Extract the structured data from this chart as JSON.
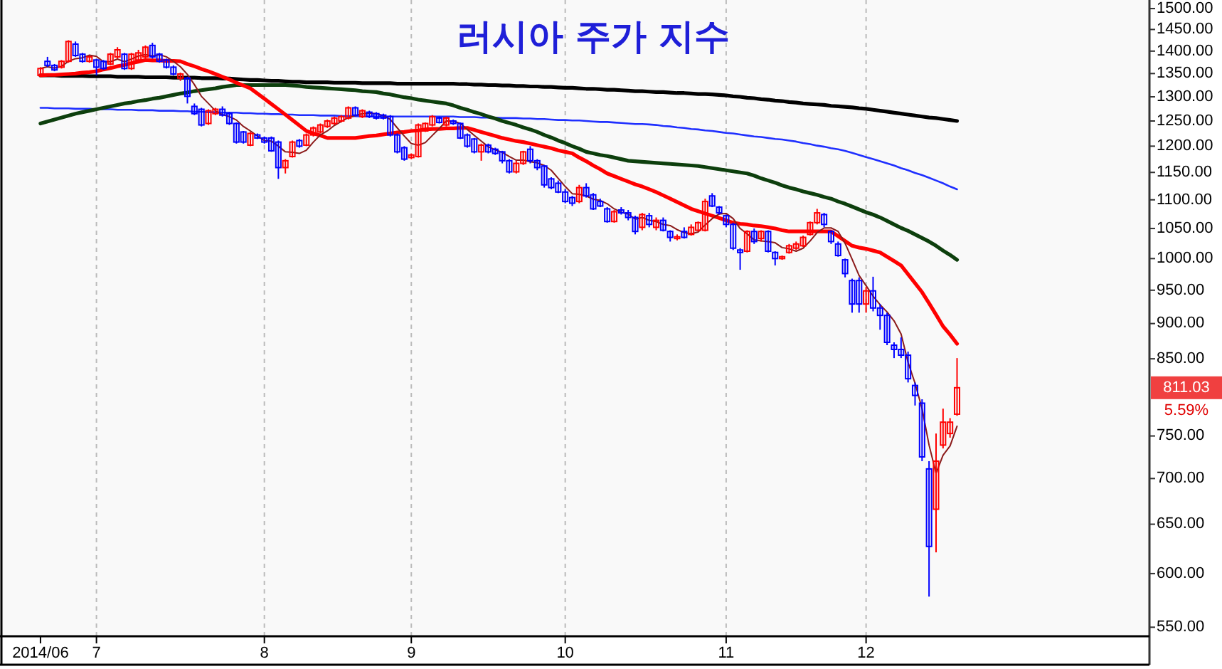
{
  "chart_data": {
    "type": "candlestick",
    "title": "러시아 주가 지수",
    "categories": [
      "2014/06",
      null,
      null,
      null,
      null,
      null,
      null,
      null,
      "7",
      null,
      null,
      null,
      null,
      null,
      null,
      null,
      null,
      null,
      null,
      null,
      null,
      null,
      null,
      null,
      null,
      null,
      null,
      null,
      null,
      null,
      null,
      null,
      "8",
      null,
      null,
      null,
      null,
      null,
      null,
      null,
      null,
      null,
      null,
      null,
      null,
      null,
      null,
      null,
      null,
      null,
      null,
      null,
      null,
      "9",
      null,
      null,
      null,
      null,
      null,
      null,
      null,
      null,
      null,
      null,
      null,
      null,
      null,
      null,
      null,
      null,
      null,
      null,
      null,
      null,
      null,
      "10",
      null,
      null,
      null,
      null,
      null,
      null,
      null,
      null,
      null,
      null,
      null,
      null,
      null,
      null,
      null,
      null,
      null,
      null,
      null,
      null,
      null,
      null,
      "11",
      null,
      null,
      null,
      null,
      null,
      null,
      null,
      null,
      null,
      null,
      null,
      null,
      null,
      null,
      null,
      null,
      null,
      null,
      null,
      "12",
      null,
      null,
      null,
      null,
      null,
      null,
      null,
      null,
      null,
      null,
      null,
      null,
      null
    ],
    "ohlc": [
      [
        1346,
        1364,
        1343,
        1361
      ],
      [
        1377,
        1387,
        1364,
        1368
      ],
      [
        1368,
        1371,
        1355,
        1358
      ],
      [
        1364,
        1380,
        1361,
        1377
      ],
      [
        1377,
        1425,
        1374,
        1422
      ],
      [
        1416,
        1422,
        1387,
        1390
      ],
      [
        1393,
        1396,
        1374,
        1377
      ],
      [
        1377,
        1390,
        1374,
        1387
      ],
      [
        1380,
        1383,
        1346,
        1364
      ],
      [
        1377,
        1380,
        1358,
        1361
      ],
      [
        1371,
        1396,
        1368,
        1393
      ],
      [
        1387,
        1409,
        1383,
        1403
      ],
      [
        1393,
        1396,
        1358,
        1361
      ],
      [
        1361,
        1396,
        1358,
        1393
      ],
      [
        1380,
        1403,
        1377,
        1396
      ],
      [
        1387,
        1413,
        1383,
        1409
      ],
      [
        1413,
        1419,
        1383,
        1387
      ],
      [
        1393,
        1396,
        1374,
        1377
      ],
      [
        1380,
        1383,
        1361,
        1364
      ],
      [
        1364,
        1368,
        1346,
        1349
      ],
      [
        1340,
        1352,
        1334,
        1349
      ],
      [
        1340,
        1343,
        1286,
        1301
      ],
      [
        1280,
        1286,
        1262,
        1265
      ],
      [
        1274,
        1277,
        1239,
        1242
      ],
      [
        1245,
        1274,
        1242,
        1271
      ],
      [
        1265,
        1277,
        1262,
        1274
      ],
      [
        1274,
        1280,
        1259,
        1262
      ],
      [
        1265,
        1268,
        1242,
        1245
      ],
      [
        1245,
        1247,
        1205,
        1208
      ],
      [
        1228,
        1230,
        1205,
        1208
      ],
      [
        1202,
        1228,
        1200,
        1225
      ],
      [
        1222,
        1225,
        1214,
        1216
      ],
      [
        1216,
        1219,
        1205,
        1208
      ],
      [
        1216,
        1219,
        1189,
        1191
      ],
      [
        1208,
        1211,
        1138,
        1159
      ],
      [
        1159,
        1175,
        1148,
        1172
      ],
      [
        1180,
        1211,
        1178,
        1208
      ],
      [
        1211,
        1214,
        1197,
        1200
      ],
      [
        1202,
        1225,
        1200,
        1222
      ],
      [
        1222,
        1239,
        1219,
        1236
      ],
      [
        1228,
        1245,
        1225,
        1242
      ],
      [
        1239,
        1253,
        1236,
        1250
      ],
      [
        1245,
        1259,
        1242,
        1256
      ],
      [
        1250,
        1262,
        1247,
        1259
      ],
      [
        1256,
        1280,
        1253,
        1277
      ],
      [
        1277,
        1280,
        1259,
        1262
      ],
      [
        1259,
        1274,
        1256,
        1271
      ],
      [
        1268,
        1271,
        1256,
        1259
      ],
      [
        1265,
        1268,
        1253,
        1256
      ],
      [
        1262,
        1265,
        1253,
        1256
      ],
      [
        1259,
        1262,
        1219,
        1222
      ],
      [
        1222,
        1225,
        1186,
        1189
      ],
      [
        1197,
        1200,
        1172,
        1175
      ],
      [
        1178,
        1186,
        1175,
        1183
      ],
      [
        1180,
        1245,
        1178,
        1242
      ],
      [
        1230,
        1247,
        1228,
        1245
      ],
      [
        1242,
        1262,
        1239,
        1259
      ],
      [
        1256,
        1259,
        1245,
        1247
      ],
      [
        1242,
        1259,
        1239,
        1256
      ],
      [
        1250,
        1253,
        1242,
        1245
      ],
      [
        1245,
        1247,
        1214,
        1216
      ],
      [
        1222,
        1225,
        1197,
        1200
      ],
      [
        1214,
        1216,
        1186,
        1189
      ],
      [
        1189,
        1205,
        1172,
        1202
      ],
      [
        1202,
        1205,
        1186,
        1189
      ],
      [
        1194,
        1197,
        1183,
        1186
      ],
      [
        1189,
        1191,
        1167,
        1172
      ],
      [
        1172,
        1175,
        1148,
        1151
      ],
      [
        1151,
        1172,
        1148,
        1167
      ],
      [
        1167,
        1191,
        1164,
        1189
      ],
      [
        1194,
        1200,
        1167,
        1172
      ],
      [
        1172,
        1175,
        1154,
        1159
      ],
      [
        1162,
        1164,
        1122,
        1127
      ],
      [
        1138,
        1141,
        1119,
        1122
      ],
      [
        1130,
        1135,
        1112,
        1114
      ],
      [
        1114,
        1119,
        1094,
        1097
      ],
      [
        1104,
        1107,
        1089,
        1094
      ],
      [
        1097,
        1127,
        1094,
        1122
      ],
      [
        1122,
        1130,
        1104,
        1107
      ],
      [
        1109,
        1112,
        1082,
        1084
      ],
      [
        1097,
        1102,
        1087,
        1089
      ],
      [
        1084,
        1087,
        1060,
        1062
      ],
      [
        1062,
        1082,
        1060,
        1079
      ],
      [
        1082,
        1087,
        1074,
        1077
      ],
      [
        1077,
        1082,
        1064,
        1069
      ],
      [
        1069,
        1072,
        1040,
        1045
      ],
      [
        1052,
        1077,
        1047,
        1074
      ],
      [
        1072,
        1077,
        1052,
        1057
      ],
      [
        1052,
        1069,
        1047,
        1064
      ],
      [
        1064,
        1069,
        1045,
        1047
      ],
      [
        1045,
        1047,
        1028,
        1035
      ],
      [
        1033,
        1040,
        1030,
        1036
      ],
      [
        1045,
        1052,
        1033,
        1035
      ],
      [
        1040,
        1057,
        1038,
        1052
      ],
      [
        1047,
        1062,
        1045,
        1060
      ],
      [
        1047,
        1102,
        1045,
        1097
      ],
      [
        1107,
        1112,
        1087,
        1089
      ],
      [
        1087,
        1089,
        1074,
        1077
      ],
      [
        1072,
        1074,
        1052,
        1057
      ],
      [
        1057,
        1060,
        1014,
        1017
      ],
      [
        1014,
        1017,
        982,
        1010
      ],
      [
        1012,
        1047,
        1010,
        1045
      ],
      [
        1045,
        1050,
        1024,
        1028
      ],
      [
        1033,
        1047,
        1028,
        1045
      ],
      [
        1045,
        1047,
        1010,
        1012
      ],
      [
        1010,
        1012,
        989,
        1000
      ],
      [
        1000,
        1005,
        998,
        1003
      ],
      [
        1010,
        1024,
        1008,
        1021
      ],
      [
        1017,
        1028,
        1014,
        1024
      ],
      [
        1021,
        1038,
        1019,
        1035
      ],
      [
        1040,
        1062,
        1038,
        1060
      ],
      [
        1060,
        1084,
        1057,
        1077
      ],
      [
        1074,
        1077,
        1052,
        1057
      ],
      [
        1045,
        1047,
        1024,
        1028
      ],
      [
        1024,
        1028,
        1003,
        1005
      ],
      [
        998,
        1000,
        970,
        976
      ],
      [
        965,
        968,
        916,
        929
      ],
      [
        965,
        970,
        916,
        929
      ],
      [
        929,
        955,
        916,
        949
      ],
      [
        949,
        971,
        918,
        923
      ],
      [
        923,
        929,
        891,
        912
      ],
      [
        912,
        916,
        869,
        873
      ],
      [
        869,
        873,
        851,
        863
      ],
      [
        863,
        880,
        851,
        855
      ],
      [
        855,
        860,
        818,
        823
      ],
      [
        814,
        818,
        788,
        801
      ],
      [
        791,
        796,
        720,
        725
      ],
      [
        711,
        720,
        578,
        627
      ],
      [
        666,
        753,
        621,
        720
      ],
      [
        739,
        784,
        735,
        767
      ],
      [
        753,
        772,
        748,
        767
      ],
      [
        777,
        851,
        775,
        811.03
      ]
    ],
    "colors": [
      "#ff0000",
      "#0000ff",
      "#0000ff",
      "#ff0000",
      "#ff0000",
      "#0000ff",
      "#0000ff",
      "#ff0000",
      "#0000ff",
      "#0000ff",
      "#ff0000",
      "#ff0000",
      "#0000ff",
      "#ff0000",
      "#ff0000",
      "#ff0000",
      "#0000ff",
      "#0000ff",
      "#0000ff",
      "#0000ff",
      "#ff0000",
      "#0000ff",
      "#0000ff",
      "#0000ff",
      "#ff0000",
      "#ff0000",
      "#0000ff",
      "#0000ff",
      "#0000ff",
      "#0000ff",
      "#ff0000",
      "#0000ff",
      "#0000ff",
      "#0000ff",
      "#0000ff",
      "#ff0000",
      "#ff0000",
      "#0000ff",
      "#ff0000",
      "#ff0000",
      "#ff0000",
      "#ff0000",
      "#ff0000",
      "#ff0000",
      "#ff0000",
      "#0000ff",
      "#ff0000",
      "#0000ff",
      "#0000ff",
      "#0000ff",
      "#0000ff",
      "#0000ff",
      "#0000ff",
      "#ff0000",
      "#ff0000",
      "#ff0000",
      "#ff0000",
      "#0000ff",
      "#ff0000",
      "#0000ff",
      "#0000ff",
      "#0000ff",
      "#0000ff",
      "#ff0000",
      "#0000ff",
      "#0000ff",
      "#0000ff",
      "#0000ff",
      "#ff0000",
      "#ff0000",
      "#0000ff",
      "#0000ff",
      "#0000ff",
      "#0000ff",
      "#0000ff",
      "#0000ff",
      "#0000ff",
      "#ff0000",
      "#0000ff",
      "#0000ff",
      "#0000ff",
      "#0000ff",
      "#ff0000",
      "#0000ff",
      "#0000ff",
      "#0000ff",
      "#ff0000",
      "#0000ff",
      "#ff0000",
      "#0000ff",
      "#0000ff",
      "#ff0000",
      "#0000ff",
      "#ff0000",
      "#ff0000",
      "#ff0000",
      "#0000ff",
      "#0000ff",
      "#0000ff",
      "#0000ff",
      "#0000ff",
      "#ff0000",
      "#0000ff",
      "#ff0000",
      "#0000ff",
      "#0000ff",
      "#ff0000",
      "#ff0000",
      "#ff0000",
      "#ff0000",
      "#ff0000",
      "#ff0000",
      "#0000ff",
      "#0000ff",
      "#0000ff",
      "#0000ff",
      "#0000ff",
      "#0000ff",
      "#ff0000",
      "#0000ff",
      "#0000ff",
      "#0000ff",
      "#0000ff",
      "#0000ff",
      "#0000ff",
      "#0000ff",
      "#0000ff",
      "#0000ff",
      "#ff0000",
      "#ff0000",
      "#ff0000",
      "#ff0000"
    ],
    "series": [
      {
        "type": "line",
        "color": "#000000",
        "values": [
          1346,
          1346,
          1346,
          1345,
          1345,
          1345,
          1345,
          1344,
          1344,
          1344,
          1344,
          1343,
          1343,
          1343,
          1343,
          1342,
          1342,
          1342,
          1342,
          1341,
          1341,
          1341,
          1341,
          1340,
          1340,
          1340,
          1339,
          1339,
          1338,
          1337,
          1336,
          1336,
          1335,
          1334,
          1334,
          1333,
          1332,
          1332,
          1331,
          1331,
          1331,
          1331,
          1330,
          1330,
          1330,
          1330,
          1329,
          1329,
          1329,
          1329,
          1329,
          1328,
          1328,
          1328,
          1328,
          1328,
          1328,
          1328,
          1328,
          1328,
          1327,
          1327,
          1326,
          1326,
          1325,
          1325,
          1324,
          1324,
          1323,
          1323,
          1322,
          1322,
          1321,
          1321,
          1320,
          1319,
          1319,
          1318,
          1317,
          1317,
          1316,
          1315,
          1315,
          1314,
          1313,
          1312,
          1312,
          1311,
          1310,
          1310,
          1309,
          1308,
          1308,
          1307,
          1306,
          1306,
          1305,
          1304,
          1303,
          1301,
          1300,
          1298,
          1297,
          1295,
          1294,
          1292,
          1291,
          1289,
          1288,
          1286,
          1285,
          1284,
          1283,
          1281,
          1280,
          1279,
          1278,
          1276,
          1275,
          1273,
          1271,
          1269,
          1267,
          1265,
          1263,
          1261,
          1259,
          1257,
          1256,
          1254,
          1252,
          1250
        ]
      },
      {
        "type": "line",
        "color": "#1f2fff",
        "values": [
          1277,
          1277,
          1276,
          1276,
          1276,
          1275,
          1275,
          1275,
          1274,
          1274,
          1274,
          1273,
          1273,
          1273,
          1272,
          1272,
          1272,
          1271,
          1271,
          1271,
          1270,
          1270,
          1269,
          1269,
          1268,
          1268,
          1267,
          1267,
          1267,
          1266,
          1266,
          1265,
          1265,
          1264,
          1264,
          1263,
          1263,
          1262,
          1262,
          1262,
          1261,
          1261,
          1261,
          1260,
          1260,
          1260,
          1259,
          1259,
          1259,
          1259,
          1259,
          1259,
          1259,
          1259,
          1259,
          1259,
          1259,
          1259,
          1259,
          1259,
          1258,
          1258,
          1258,
          1257,
          1257,
          1257,
          1256,
          1256,
          1256,
          1255,
          1255,
          1254,
          1254,
          1253,
          1252,
          1252,
          1251,
          1251,
          1250,
          1249,
          1248,
          1248,
          1247,
          1246,
          1245,
          1244,
          1244,
          1243,
          1242,
          1240,
          1239,
          1237,
          1236,
          1234,
          1233,
          1231,
          1230,
          1228,
          1226,
          1225,
          1223,
          1221,
          1219,
          1218,
          1216,
          1214,
          1213,
          1211,
          1209,
          1206,
          1204,
          1201,
          1199,
          1196,
          1194,
          1191,
          1187,
          1183,
          1179,
          1175,
          1171,
          1167,
          1163,
          1158,
          1154,
          1149,
          1145,
          1140,
          1135,
          1130,
          1124,
          1119
        ]
      },
      {
        "type": "line",
        "color": "#0d3f0d",
        "values": [
          1245,
          1249,
          1253,
          1257,
          1261,
          1265,
          1268,
          1271,
          1274,
          1277,
          1280,
          1283,
          1286,
          1288,
          1291,
          1293,
          1296,
          1298,
          1301,
          1304,
          1307,
          1309,
          1312,
          1314,
          1316,
          1318,
          1321,
          1323,
          1325,
          1325,
          1325,
          1325,
          1325,
          1325,
          1325,
          1325,
          1324,
          1323,
          1321,
          1320,
          1319,
          1318,
          1317,
          1316,
          1315,
          1314,
          1312,
          1311,
          1310,
          1307,
          1305,
          1302,
          1299,
          1297,
          1294,
          1292,
          1290,
          1288,
          1286,
          1282,
          1277,
          1273,
          1268,
          1264,
          1259,
          1255,
          1250,
          1246,
          1242,
          1237,
          1233,
          1228,
          1222,
          1217,
          1211,
          1206,
          1200,
          1195,
          1189,
          1186,
          1183,
          1181,
          1178,
          1175,
          1172,
          1171,
          1170,
          1169,
          1168,
          1167,
          1166,
          1165,
          1164,
          1163,
          1162,
          1160,
          1158,
          1156,
          1154,
          1152,
          1150,
          1148,
          1144,
          1139,
          1135,
          1131,
          1126,
          1122,
          1119,
          1115,
          1112,
          1109,
          1105,
          1102,
          1097,
          1093,
          1088,
          1083,
          1078,
          1074,
          1069,
          1063,
          1057,
          1051,
          1046,
          1040,
          1034,
          1028,
          1021,
          1013,
          1006,
          998
        ]
      },
      {
        "type": "line",
        "color": "#ff0000",
        "values": [
          1346,
          1347,
          1347,
          1348,
          1349,
          1350,
          1352,
          1353,
          1355,
          1359,
          1362,
          1366,
          1369,
          1373,
          1376,
          1380,
          1379,
          1379,
          1378,
          1378,
          1377,
          1371,
          1366,
          1360,
          1355,
          1349,
          1343,
          1337,
          1330,
          1324,
          1318,
          1307,
          1296,
          1285,
          1274,
          1263,
          1252,
          1241,
          1230,
          1225,
          1221,
          1216,
          1216,
          1216,
          1216,
          1216,
          1218,
          1220,
          1221,
          1223,
          1225,
          1227,
          1228,
          1230,
          1231,
          1233,
          1234,
          1234,
          1235,
          1235,
          1236,
          1236,
          1232,
          1228,
          1224,
          1220,
          1216,
          1213,
          1210,
          1208,
          1205,
          1202,
          1199,
          1196,
          1192,
          1189,
          1186,
          1178,
          1171,
          1163,
          1156,
          1148,
          1143,
          1138,
          1133,
          1128,
          1124,
          1119,
          1114,
          1108,
          1102,
          1096,
          1090,
          1084,
          1080,
          1076,
          1072,
          1068,
          1064,
          1060,
          1058,
          1057,
          1055,
          1054,
          1052,
          1050,
          1047,
          1045,
          1045,
          1045,
          1045,
          1045,
          1045,
          1045,
          1037,
          1029,
          1021,
          1018,
          1016,
          1013,
          1010,
          1003,
          996,
          989,
          975,
          961,
          947,
          930,
          913,
          896,
          884,
          871
        ]
      },
      {
        "type": "line",
        "color": "#8b1a1a",
        "values": [
          1361,
          1365,
          1362,
          1366,
          1377,
          1383,
          1385,
          1391,
          1388,
          1376,
          1376,
          1382,
          1376,
          1382,
          1389,
          1392,
          1389,
          1392,
          1387,
          1377,
          1365,
          1348,
          1326,
          1301,
          1286,
          1271,
          1263,
          1259,
          1252,
          1239,
          1230,
          1220,
          1211,
          1210,
          1200,
          1189,
          1188,
          1186,
          1192,
          1208,
          1222,
          1230,
          1241,
          1249,
          1257,
          1261,
          1265,
          1266,
          1265,
          1261,
          1253,
          1236,
          1220,
          1205,
          1202,
          1207,
          1221,
          1235,
          1250,
          1250,
          1245,
          1233,
          1221,
          1210,
          1199,
          1193,
          1188,
          1180,
          1173,
          1173,
          1170,
          1168,
          1163,
          1154,
          1139,
          1124,
          1111,
          1110,
          1107,
          1101,
          1099,
          1093,
          1084,
          1078,
          1075,
          1066,
          1069,
          1064,
          1062,
          1057,
          1055,
          1048,
          1043,
          1041,
          1044,
          1056,
          1067,
          1075,
          1076,
          1067,
          1050,
          1041,
          1031,
          1029,
          1028,
          1026,
          1018,
          1016,
          1012,
          1017,
          1029,
          1043,
          1051,
          1051,
          1045,
          1025,
          999,
          973,
          957,
          941,
          928,
          917,
          904,
          885,
          845,
          817,
          784,
          739,
          706,
          727,
          738,
          762
        ]
      }
    ],
    "log": "y",
    "ylim": [
      542,
      1521
    ],
    "grid": "x",
    "yticks": [
      {
        "value": 550,
        "label": "550.00"
      },
      {
        "value": 600,
        "label": "600.00"
      },
      {
        "value": 650,
        "label": "650.00"
      },
      {
        "value": 700,
        "label": "700.00"
      },
      {
        "value": 750,
        "label": "750.00"
      },
      {
        "value": 850,
        "label": "850.00"
      },
      {
        "value": 900,
        "label": "900.00"
      },
      {
        "value": 950,
        "label": "950.00"
      },
      {
        "value": 1000,
        "label": "1000.00"
      },
      {
        "value": 1050,
        "label": "1050.00"
      },
      {
        "value": 1100,
        "label": "1100.00"
      },
      {
        "value": 1150,
        "label": "1150.00"
      },
      {
        "value": 1200,
        "label": "1200.00"
      },
      {
        "value": 1250,
        "label": "1250.00"
      },
      {
        "value": 1300,
        "label": "1300.00"
      },
      {
        "value": 1350,
        "label": "1350.00"
      },
      {
        "value": 1400,
        "label": "1400.00"
      },
      {
        "value": 1450,
        "label": "1450.00"
      },
      {
        "value": 1500,
        "label": "1500.00"
      }
    ],
    "annotations": [
      "811.03",
      "5.59%"
    ]
  }
}
